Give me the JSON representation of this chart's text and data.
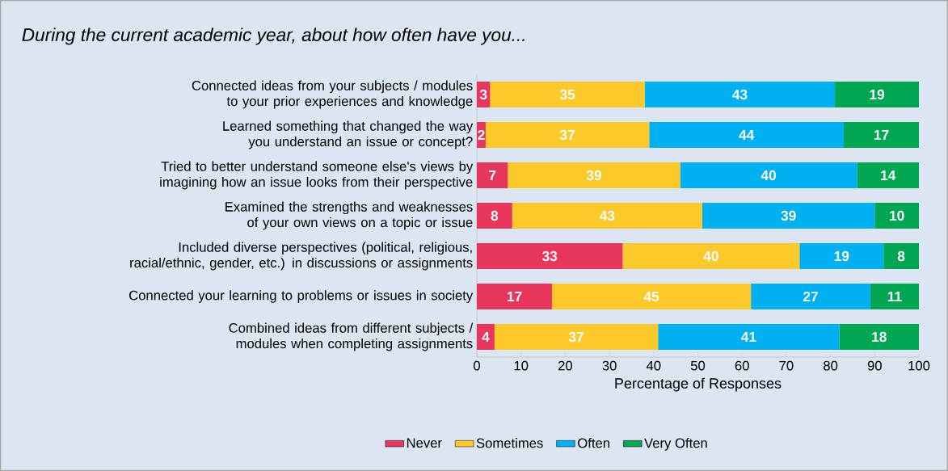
{
  "chart_data": {
    "type": "bar",
    "orientation": "horizontal",
    "stacked": true,
    "title": "During the current academic year, about how often have you...",
    "categories": [
      "Connected ideas from your subjects / modules to your prior experiences and knowledge",
      "Learned something that changed the way you understand an issue or concept?",
      "Tried to better understand someone else's views by imagining how an issue looks from their perspective",
      "Examined the strengths and weaknesses of your own views on a topic or issue",
      "Included diverse perspectives (political, religious, racial/ethnic, gender, etc.) in discussions or assignments",
      "Connected your learning to problems or issues in society",
      "Combined ideas from different subjects / modules when completing assignments"
    ],
    "series": [
      {
        "name": "Never",
        "color": "#e8365d",
        "values": [
          3,
          2,
          7,
          8,
          33,
          17,
          4
        ]
      },
      {
        "name": "Sometimes",
        "color": "#fcc92a",
        "values": [
          35,
          37,
          39,
          43,
          40,
          45,
          37
        ]
      },
      {
        "name": "Often",
        "color": "#00b0f0",
        "values": [
          43,
          44,
          40,
          39,
          19,
          27,
          41
        ]
      },
      {
        "name": "Very Often",
        "color": "#00a651",
        "values": [
          19,
          17,
          14,
          10,
          8,
          11,
          18
        ]
      }
    ],
    "xlabel": "Percentage of Responses",
    "xlim": [
      0,
      100
    ],
    "xticks": [
      0,
      10,
      20,
      30,
      40,
      50,
      60,
      70,
      80,
      90,
      100
    ],
    "data_labels": true,
    "legend": "bottom",
    "grid": false
  }
}
